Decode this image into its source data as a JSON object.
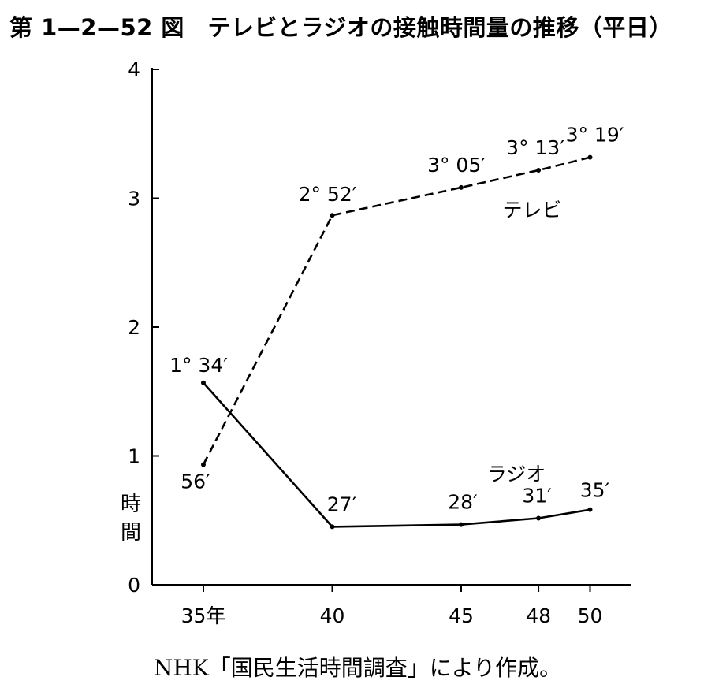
{
  "chart_data": {
    "type": "line",
    "title": "第 1—2—52 図　テレビとラジオの接触時間量の推移（平日）",
    "source": "NHK「国民生活時間調査」により作成。",
    "ylabel": "時間",
    "xlabel": "",
    "ylim": [
      0,
      4
    ],
    "yticks": [
      "0",
      "1",
      "2",
      "3",
      "4"
    ],
    "x": [
      35,
      40,
      45,
      48,
      50
    ],
    "xtick_labels": [
      "35年",
      "40",
      "45",
      "48",
      "50"
    ],
    "series": [
      {
        "name": "テレビ",
        "style": "dashed",
        "values": [
          0.933,
          2.867,
          3.083,
          3.217,
          3.317
        ],
        "labels": [
          "56′",
          "2° 52′",
          "3° 05′",
          "3° 13′",
          "3° 19′"
        ]
      },
      {
        "name": "ラジオ",
        "style": "solid",
        "values": [
          1.567,
          0.45,
          0.467,
          0.517,
          0.583
        ],
        "labels": [
          "1° 34′",
          "27′",
          "28′",
          "31′",
          "35′"
        ]
      }
    ],
    "grid": false,
    "legend": "none",
    "line_color": "#000000"
  }
}
